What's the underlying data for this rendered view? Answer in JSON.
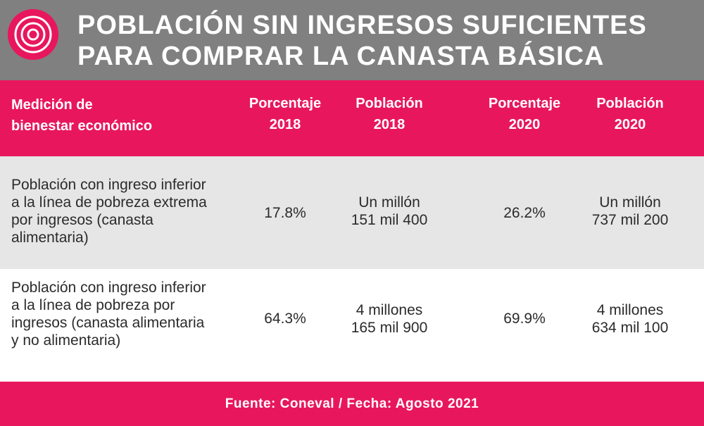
{
  "colors": {
    "brand_pink": "#e8175d",
    "title_bg": "#808080",
    "row_alt_bg": "#e6e6e6",
    "text_dark": "#2b2b2b"
  },
  "logo": {
    "icon": "concentric-circles-logo-icon"
  },
  "title": {
    "line1": "POBLACIÓN SIN INGRESOS SUFICIENTES",
    "line2": "PARA COMPRAR LA CANASTA BÁSICA"
  },
  "table": {
    "headers": [
      {
        "line1": "Medición de",
        "line2": "bienestar económico"
      },
      {
        "line1": "Porcentaje",
        "line2": "2018"
      },
      {
        "line1": "Población",
        "line2": "2018"
      },
      {
        "line1": "Porcentaje",
        "line2": "2020"
      },
      {
        "line1": "Población",
        "line2": "2020"
      }
    ],
    "rows": [
      {
        "label": "Población con ingreso inferior a la línea de pobreza extrema por ingresos (canasta alimentaria)",
        "pct_2018": "17.8%",
        "pop_2018": {
          "line1": "Un millón",
          "line2": "151 mil 400"
        },
        "pct_2020": "26.2%",
        "pop_2020": {
          "line1": "Un millón",
          "line2": "737 mil 200"
        }
      },
      {
        "label": "Población con ingreso inferior a la línea de pobreza por ingresos (canasta alimentaria y no alimentaria)",
        "pct_2018": "64.3%",
        "pop_2018": {
          "line1": "4 millones",
          "line2": "165 mil 900"
        },
        "pct_2020": "69.9%",
        "pop_2020": {
          "line1": "4 millones",
          "line2": "634 mil 100"
        }
      }
    ]
  },
  "footer": {
    "text": "Fuente: Coneval / Fecha: Agosto 2021"
  }
}
